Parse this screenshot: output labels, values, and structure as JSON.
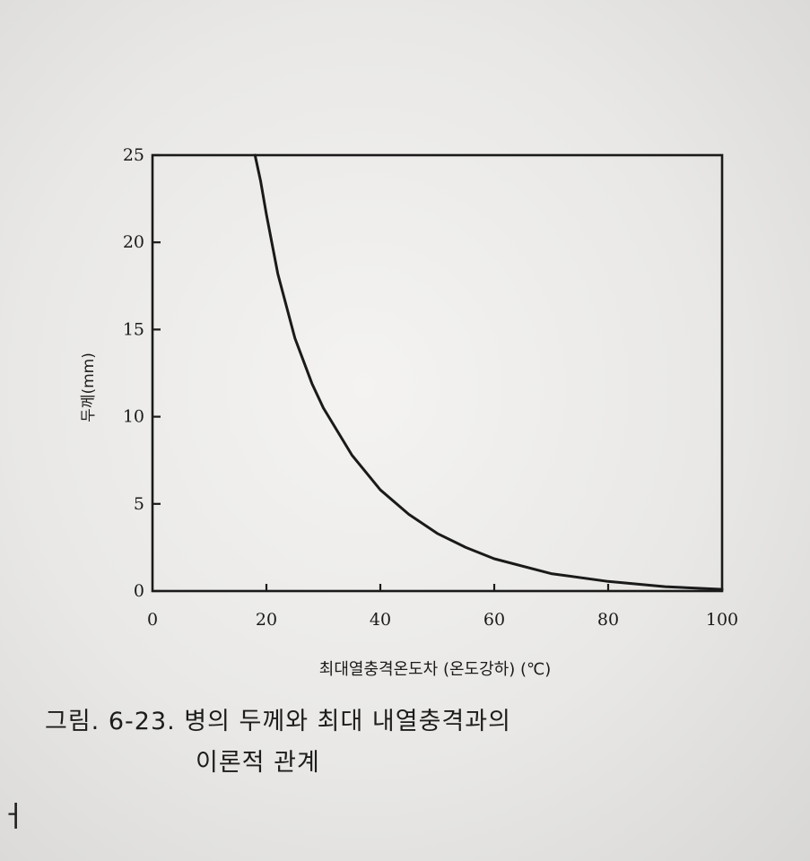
{
  "chart_data": {
    "type": "line",
    "xlabel": "최대열충격온도차 (온도강하) (℃)",
    "ylabel": "두께(mm)",
    "xlim": [
      0,
      100
    ],
    "ylim": [
      0,
      25
    ],
    "x_ticks": [
      "0",
      "20",
      "40",
      "60",
      "80",
      "100"
    ],
    "y_ticks": [
      "0",
      "5",
      "10",
      "15",
      "20",
      "25"
    ],
    "grid": false,
    "series": [
      {
        "x": [
          18,
          19,
          20,
          22,
          25,
          28,
          30,
          35,
          40,
          45,
          50,
          55,
          60,
          70,
          80,
          90,
          100
        ],
        "y": [
          25,
          23.5,
          21.6,
          18.2,
          14.5,
          11.9,
          10.5,
          7.8,
          5.8,
          4.4,
          3.3,
          2.5,
          1.85,
          1.0,
          0.55,
          0.25,
          0.1
        ]
      }
    ],
    "color": "#1a1a1a"
  },
  "caption": {
    "line1": "그림. 6-23. 병의 두께와 최대 내열충격과의",
    "line2": "이론적 관계"
  },
  "edge_glyph": "ㅓ"
}
